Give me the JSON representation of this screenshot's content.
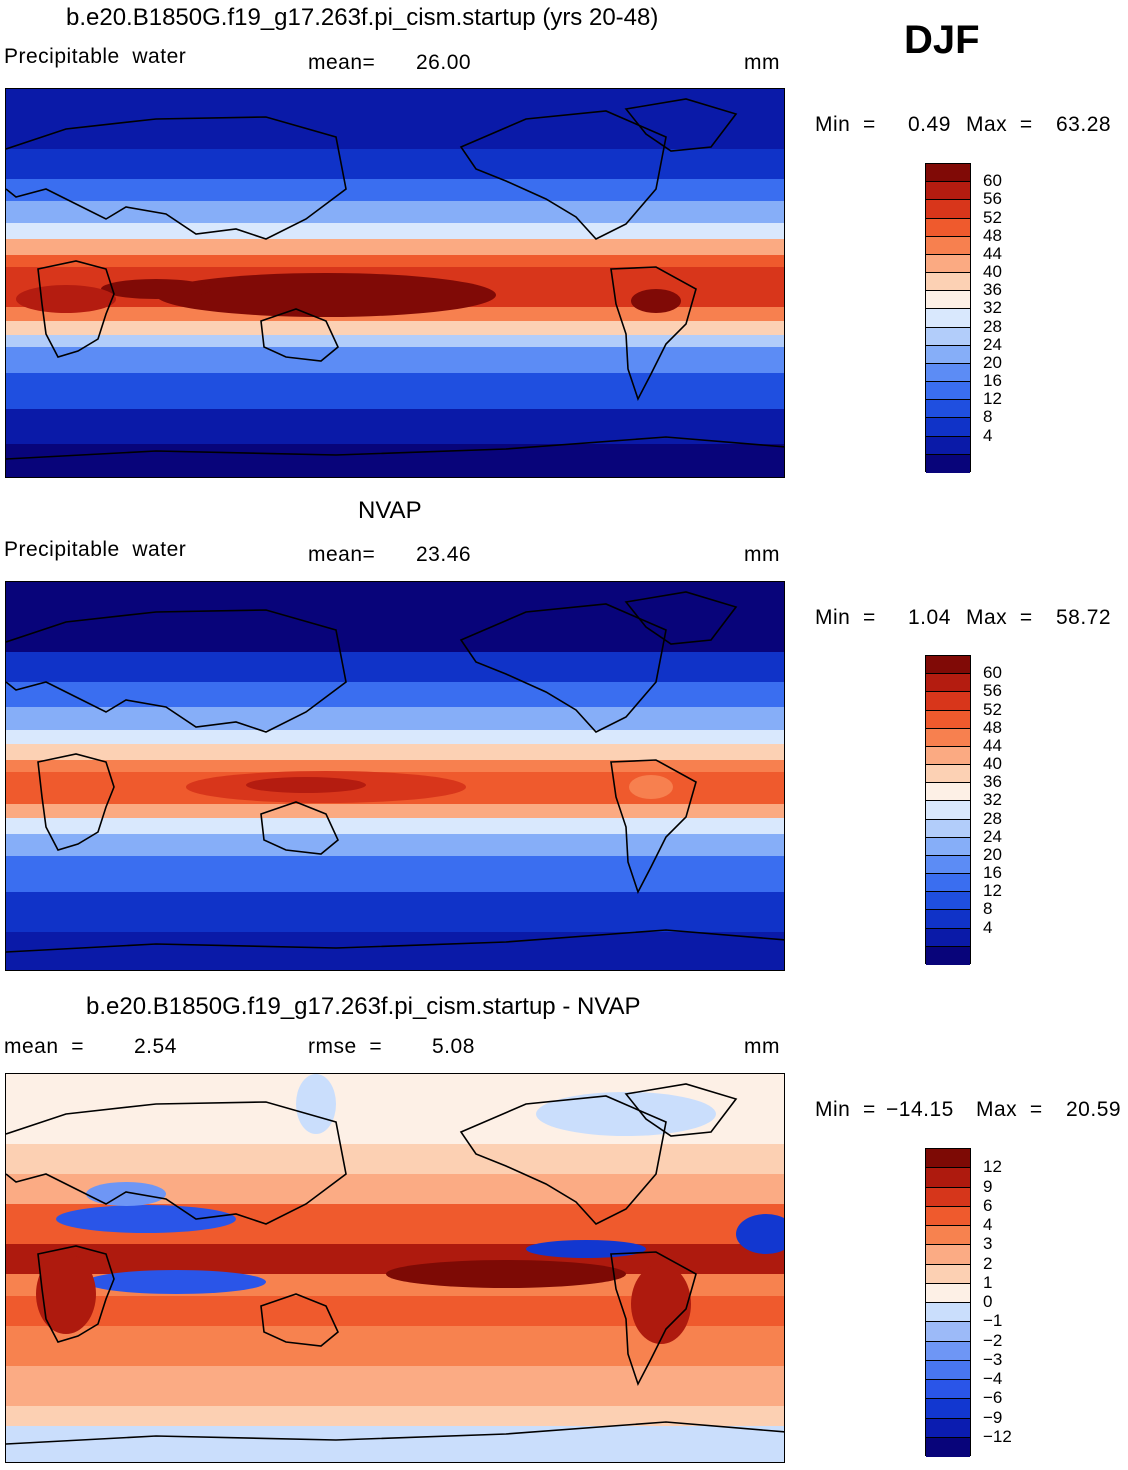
{
  "season": "DJF",
  "colors": {
    "p_scale": [
      "#08047a",
      "#0a1aa8",
      "#1033c8",
      "#1f4fe0",
      "#3a6ef0",
      "#5c8cf5",
      "#86aef8",
      "#b2cdfa",
      "#d9e8fd",
      "#fdf0e6",
      "#fcd1b4",
      "#fbaa82",
      "#f7804f",
      "#ef5a2d",
      "#d8361b",
      "#b41c10",
      "#800a06"
    ],
    "d_scale": [
      "#08047a",
      "#0b1cb0",
      "#1237d0",
      "#2a55e8",
      "#4876f0",
      "#6e96f5",
      "#9cbaf8",
      "#cadefc",
      "#fdf0e6",
      "#fcd0b3",
      "#fbab84",
      "#f7824f",
      "#ef5a2d",
      "#d6361b",
      "#ae1a0e",
      "#7d0a05"
    ]
  },
  "panels": [
    {
      "title": "b.e20.B1850G.f19_g17.263f.pi_cism.startup (yrs 20-48)",
      "left_label": "Precipitable  water",
      "mean_label": "mean=",
      "mean_value": "26.00",
      "units": "mm",
      "min_label": "Min  =",
      "min_value": "0.49",
      "max_label": "Max  =",
      "max_value": "63.28",
      "colorbar_labels": [
        "60",
        "56",
        "52",
        "48",
        "44",
        "40",
        "36",
        "32",
        "28",
        "24",
        "20",
        "16",
        "12",
        "8",
        "4"
      ]
    },
    {
      "title": "NVAP",
      "left_label": "Precipitable  water",
      "mean_label": "mean=",
      "mean_value": "23.46",
      "units": "mm",
      "min_label": "Min  =",
      "min_value": "1.04",
      "max_label": "Max  =",
      "max_value": "58.72",
      "colorbar_labels": [
        "60",
        "56",
        "52",
        "48",
        "44",
        "40",
        "36",
        "32",
        "28",
        "24",
        "20",
        "16",
        "12",
        "8",
        "4"
      ]
    },
    {
      "title": "b.e20.B1850G.f19_g17.263f.pi_cism.startup - NVAP",
      "mean_label": "mean  =",
      "mean_value": "2.54",
      "rmse_label": "rmse  =",
      "rmse_value": "5.08",
      "units": "mm",
      "min_label": "Min  =",
      "min_value": "−14.15",
      "max_label": "Max  =",
      "max_value": "20.59",
      "colorbar_labels": [
        "12",
        "9",
        "6",
        "4",
        "3",
        "2",
        "1",
        "0",
        "−1",
        "−2",
        "−3",
        "−4",
        "−6",
        "−9",
        "−12"
      ]
    }
  ]
}
